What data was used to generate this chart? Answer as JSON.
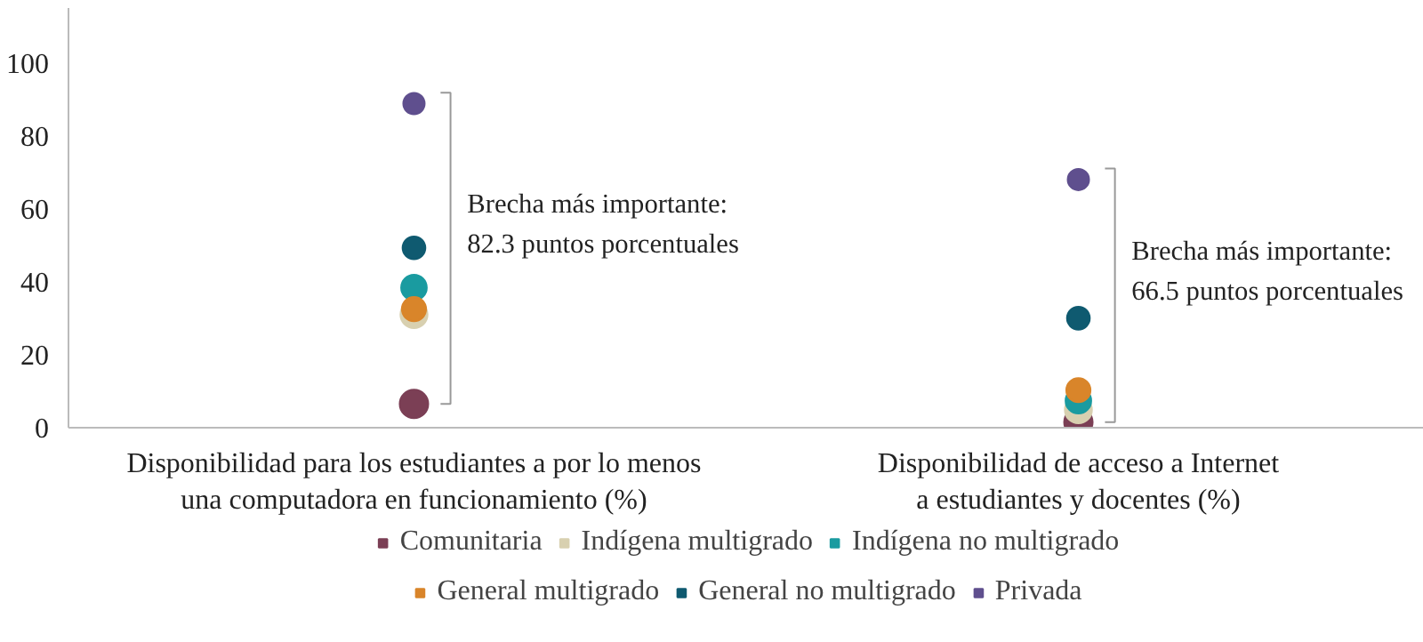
{
  "chart_data": {
    "type": "scatter",
    "categories": [
      "Disponibilidad para los estudiantes a por lo menos\nuna computadora en funcionamiento (%)",
      "Disponibilidad de acceso a Internet\na estudiantes y docentes (%)"
    ],
    "series": [
      {
        "name": "Comunitaria",
        "color": "#7b3f55",
        "values": [
          6.5,
          1.5
        ]
      },
      {
        "name": "Indígena multigrado",
        "color": "#d8d0b0",
        "values": [
          31,
          4.9
        ]
      },
      {
        "name": "Indígena no multigrado",
        "color": "#1a9ba0",
        "values": [
          38.4,
          7.4
        ]
      },
      {
        "name": "General multigrado",
        "color": "#d9852a",
        "values": [
          32.5,
          10.3
        ]
      },
      {
        "name": "General no multigrado",
        "color": "#0f5a70",
        "values": [
          49.3,
          30
        ]
      },
      {
        "name": "Privada",
        "color": "#5f4f8e",
        "values": [
          88.8,
          68
        ]
      }
    ],
    "ylim": [
      0,
      115
    ],
    "yticks": [
      0,
      20,
      40,
      60,
      80,
      100
    ],
    "grid": false,
    "legend": "bottom",
    "marker": "circle",
    "annotations": [
      "Brecha más importante:\n82.3 puntos porcentuales",
      "Brecha más importante:\n66.5 puntos porcentuales"
    ]
  }
}
